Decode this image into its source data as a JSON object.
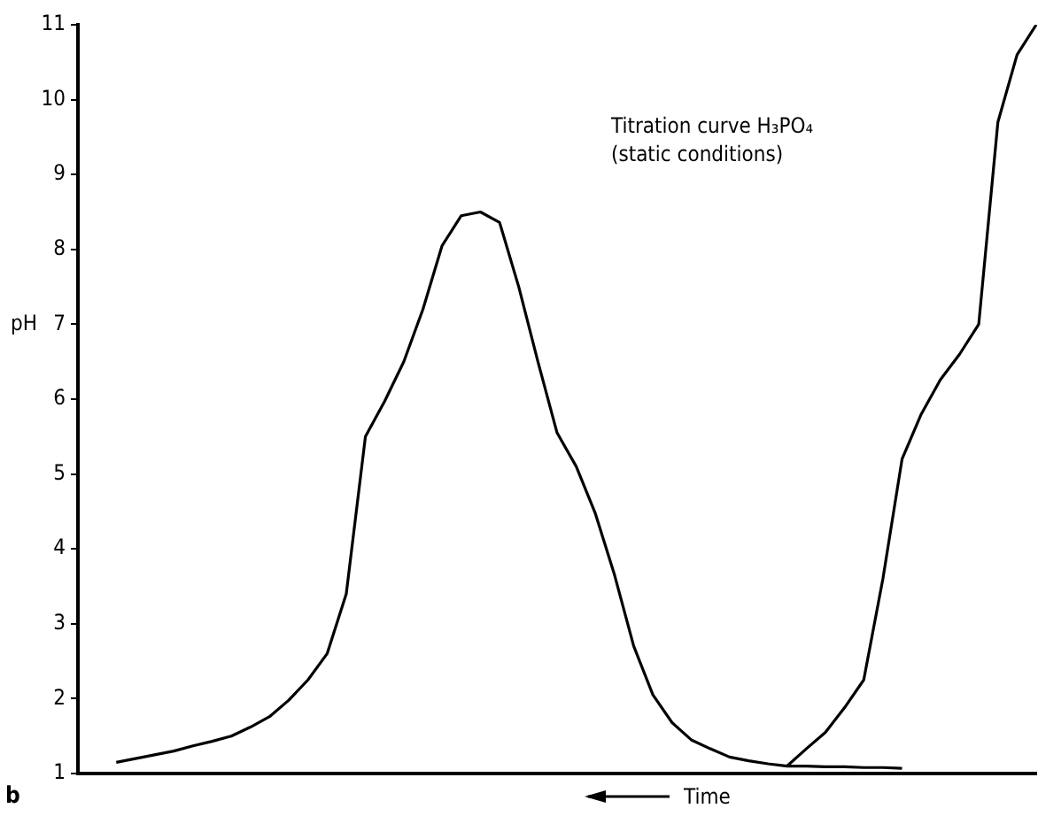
{
  "chart_data": {
    "type": "line",
    "xlabel": "Time",
    "ylabel": "pH",
    "annotations": [
      "Titration curve H₃PO₄\n(static conditions)",
      "b"
    ],
    "categories": [
      null,
      null,
      null,
      null,
      null,
      null,
      null,
      null,
      null,
      null,
      null,
      null,
      null,
      null,
      null,
      null,
      null,
      null,
      null,
      null,
      null,
      null,
      null,
      null,
      null,
      null,
      null,
      null,
      null,
      null,
      null,
      null,
      null,
      null,
      null,
      null,
      null,
      null,
      null,
      null,
      null,
      null,
      null,
      null,
      null,
      null,
      null,
      null,
      null,
      null,
      null
    ],
    "ylim": [
      1,
      11
    ],
    "yticks": [
      1,
      2,
      3,
      4,
      5,
      6,
      7,
      8,
      9,
      10,
      11
    ],
    "tick_labels": "y",
    "grid": false,
    "legend": false,
    "marker": "none",
    "line_style": "solid",
    "series": [
      {
        "color": "#000000",
        "values": [
          null,
          null,
          1.15,
          1.2,
          1.25,
          1.3,
          1.37,
          1.43,
          1.5,
          1.62,
          1.76,
          1.98,
          2.25,
          2.6,
          3.4,
          5.5,
          5.97,
          6.5,
          7.2,
          8.05,
          8.45,
          8.5,
          8.36,
          7.5,
          6.5,
          5.55,
          5.1,
          4.47,
          3.65,
          2.7,
          2.05,
          1.68,
          1.45,
          1.33,
          1.22,
          1.17,
          1.13,
          1.1,
          1.1,
          1.09,
          1.09,
          1.08,
          1.08,
          1.07,
          null,
          null,
          null,
          null,
          null,
          null,
          null
        ]
      },
      {
        "color": "#000000",
        "values": [
          null,
          null,
          null,
          null,
          null,
          null,
          null,
          null,
          null,
          null,
          null,
          null,
          null,
          null,
          null,
          null,
          null,
          null,
          null,
          null,
          null,
          null,
          null,
          null,
          null,
          null,
          null,
          null,
          null,
          null,
          null,
          null,
          null,
          null,
          null,
          null,
          null,
          1.1,
          1.33,
          1.55,
          1.88,
          2.25,
          3.6,
          5.2,
          5.8,
          6.26,
          6.6,
          7.0,
          9.7,
          10.6,
          11.0
        ]
      }
    ]
  }
}
